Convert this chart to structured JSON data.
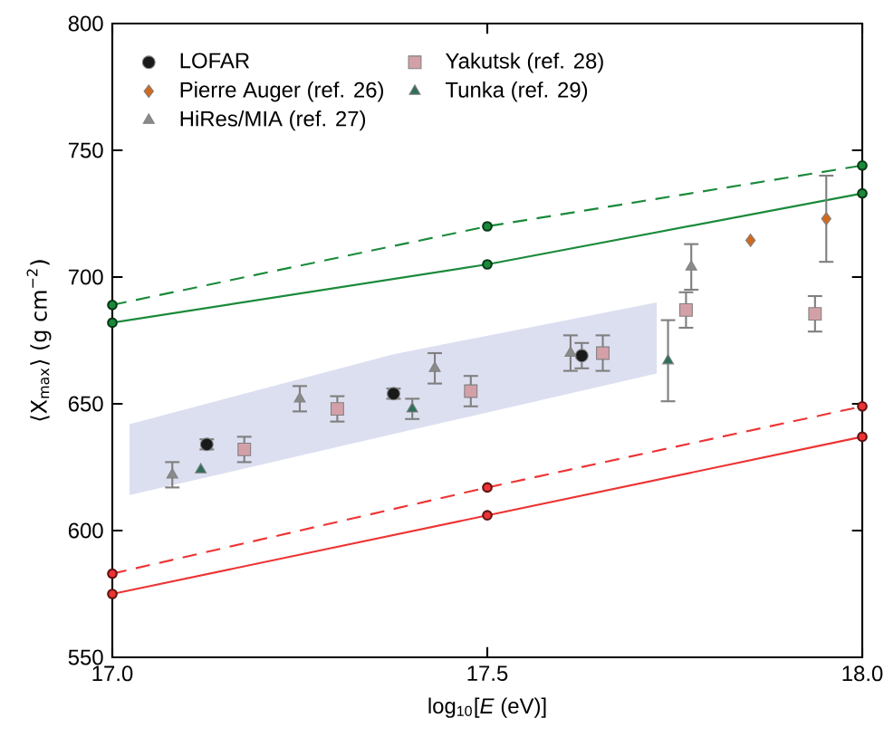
{
  "chart_data": {
    "type": "scatter",
    "xlabel": "log$_{10}$[*E* (eV)]",
    "ylabel": "⟨X$_{max}$⟩ (g cm$^{−2}$)",
    "xlim": [
      17.0,
      18.0
    ],
    "ylim": [
      550,
      800
    ],
    "xticks": [
      {
        "value": 17.0,
        "label": "17.0"
      },
      {
        "value": 17.5,
        "label": "17.5"
      },
      {
        "value": 18.0,
        "label": "18.0"
      }
    ],
    "yticks": [
      550,
      600,
      650,
      700,
      750,
      800
    ],
    "legend": "top left",
    "grid": false,
    "series": [
      {
        "type": "area",
        "color": "#dcdff0",
        "x": [
          17.023,
          17.374,
          17.726
        ],
        "values": [
          null,
          null,
          null
        ],
        "lower": [
          614,
          638,
          662
        ],
        "upper": [
          642,
          669.5,
          690
        ]
      },
      {
        "type": "line",
        "color": "#1a8a3a",
        "line_style": "dashed",
        "marker": "circle",
        "x": [
          17.0,
          17.5,
          18.0
        ],
        "values": [
          689,
          720,
          744
        ]
      },
      {
        "type": "line",
        "color": "#1a8a3a",
        "line_style": "solid",
        "marker": "circle",
        "x": [
          17.0,
          17.5,
          18.0
        ],
        "values": [
          682,
          705,
          733
        ]
      },
      {
        "type": "line",
        "color": "#ee3333",
        "line_style": "dashed",
        "marker": "circle",
        "x": [
          17.0,
          17.5,
          18.0
        ],
        "values": [
          583,
          617,
          649
        ]
      },
      {
        "type": "line",
        "color": "#ee3333",
        "line_style": "solid",
        "marker": "circle",
        "x": [
          17.0,
          17.5,
          18.0
        ],
        "values": [
          575,
          606,
          637
        ]
      },
      {
        "name": "LOFAR",
        "color": "#1a1a1a",
        "marker": "circle",
        "x": [
          17.126,
          17.375,
          17.626
        ],
        "values": [
          634,
          654,
          669
        ],
        "errors": [
          2,
          2,
          5
        ]
      },
      {
        "name": "Pierre Auger (ref. 26)",
        "color": "#d2691e",
        "marker": "diamond",
        "x": [
          17.851,
          17.952
        ],
        "values": [
          714.5,
          723
        ],
        "errors": [
          null,
          17
        ]
      },
      {
        "name": "HiRes/MIA (ref. 27)",
        "color": "#8a8a8a",
        "marker": "triangle",
        "x": [
          17.08,
          17.25,
          17.43,
          17.611,
          17.772
        ],
        "values": [
          622,
          652,
          664,
          670,
          704
        ],
        "errors": [
          5,
          5,
          6,
          7,
          9
        ]
      },
      {
        "name": "Yakutsk  (ref. 28)",
        "color": "#d4a0a8",
        "marker": "square",
        "x": [
          17.176,
          17.3,
          17.478,
          17.654,
          17.765,
          17.937
        ],
        "values": [
          632,
          648,
          655,
          670,
          687,
          685.5
        ],
        "errors": [
          5,
          5,
          6,
          7,
          7,
          7
        ]
      },
      {
        "name": "Tunka  (ref. 29)",
        "color": "#2f6f5a",
        "marker": "triangle",
        "x": [
          17.118,
          17.4,
          17.741
        ],
        "values": [
          624,
          648,
          667
        ],
        "errors": [
          null,
          4,
          16
        ]
      }
    ]
  }
}
